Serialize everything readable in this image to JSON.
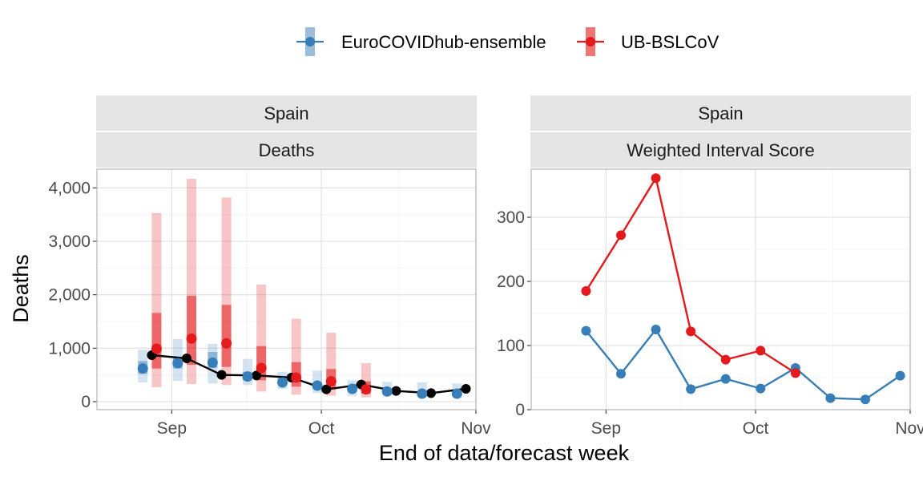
{
  "colors": {
    "ensemble": "#377EB8",
    "ub": "#E41A1C",
    "observed": "#000000"
  },
  "legend": {
    "items": [
      {
        "key": "ensemble",
        "label": "EuroCOVIDhub-ensemble"
      },
      {
        "key": "ub",
        "label": "UB-BSLCoV"
      }
    ]
  },
  "xlabel": "End of data/forecast week",
  "chart_data": [
    {
      "type": "line",
      "strip": {
        "location": "Spain",
        "target": "Deaths"
      },
      "ylabel": "Deaths",
      "x_axis": {
        "range": [
          "2021-08-17",
          "2021-11-01"
        ],
        "ticks": [
          {
            "date": "2021-09-01",
            "label": "Sep"
          },
          {
            "date": "2021-10-01",
            "label": "Oct"
          },
          {
            "date": "2021-11-01",
            "label": "Nov"
          }
        ]
      },
      "y_axis": {
        "range": [
          -150,
          4350
        ],
        "ticks": [
          {
            "value": 0,
            "label": "0"
          },
          {
            "value": 1000,
            "label": "1,000"
          },
          {
            "value": 2000,
            "label": "2,000"
          },
          {
            "value": 3000,
            "label": "3,000"
          },
          {
            "value": 4000,
            "label": "4,000"
          }
        ]
      },
      "observed": {
        "dates": [
          "2021-08-28",
          "2021-09-04",
          "2021-09-11",
          "2021-09-18",
          "2021-09-25",
          "2021-10-02",
          "2021-10-09",
          "2021-10-16",
          "2021-10-23",
          "2021-10-30"
        ],
        "values": [
          870,
          810,
          500,
          490,
          450,
          230,
          320,
          200,
          160,
          240
        ]
      },
      "forecasts": [
        {
          "model": "ensemble",
          "dates": [
            "2021-08-27",
            "2021-09-03",
            "2021-09-10",
            "2021-09-17",
            "2021-09-24",
            "2021-10-01",
            "2021-10-08",
            "2021-10-15",
            "2021-10-22",
            "2021-10-29"
          ],
          "median": [
            620,
            720,
            730,
            470,
            360,
            300,
            240,
            190,
            150,
            150
          ],
          "inner": [
            [
              520,
              760
            ],
            [
              620,
              840
            ],
            [
              630,
              930
            ],
            [
              400,
              560
            ],
            [
              310,
              430
            ],
            [
              250,
              360
            ],
            [
              190,
              290
            ],
            [
              160,
              240
            ],
            [
              130,
              190
            ],
            [
              120,
              190
            ]
          ],
          "outer": [
            [
              360,
              970
            ],
            [
              390,
              1170
            ],
            [
              340,
              1080
            ],
            [
              310,
              800
            ],
            [
              240,
              560
            ],
            [
              160,
              580
            ],
            [
              110,
              400
            ],
            [
              110,
              370
            ],
            [
              90,
              360
            ],
            [
              80,
              340
            ]
          ]
        },
        {
          "model": "ub",
          "dates": [
            "2021-08-28",
            "2021-09-04",
            "2021-09-11",
            "2021-09-18",
            "2021-09-25",
            "2021-10-02",
            "2021-10-09"
          ],
          "median": [
            990,
            1180,
            1090,
            630,
            450,
            380,
            230
          ],
          "inner": [
            [
              620,
              1660
            ],
            [
              690,
              1980
            ],
            [
              650,
              1810
            ],
            [
              400,
              1040
            ],
            [
              280,
              740
            ],
            [
              230,
              610
            ],
            [
              150,
              380
            ]
          ],
          "outer": [
            [
              270,
              3530
            ],
            [
              330,
              4170
            ],
            [
              310,
              3820
            ],
            [
              190,
              2190
            ],
            [
              130,
              1550
            ],
            [
              110,
              1290
            ],
            [
              80,
              720
            ]
          ]
        }
      ]
    },
    {
      "type": "line",
      "strip": {
        "location": "Spain",
        "target": "Weighted Interval Score"
      },
      "x_axis": {
        "range": [
          "2021-08-17",
          "2021-11-01"
        ],
        "ticks": [
          {
            "date": "2021-09-01",
            "label": "Sep"
          },
          {
            "date": "2021-10-01",
            "label": "Oct"
          },
          {
            "date": "2021-11-01",
            "label": "Nov"
          }
        ]
      },
      "y_axis": {
        "range": [
          0,
          375
        ],
        "ticks": [
          {
            "value": 0,
            "label": "0"
          },
          {
            "value": 100,
            "label": "100"
          },
          {
            "value": 200,
            "label": "200"
          },
          {
            "value": 300,
            "label": "300"
          }
        ]
      },
      "series": [
        {
          "name": "EuroCOVIDhub-ensemble",
          "key": "ensemble",
          "dates": [
            "2021-08-28",
            "2021-09-04",
            "2021-09-11",
            "2021-09-18",
            "2021-09-25",
            "2021-10-02",
            "2021-10-09",
            "2021-10-16",
            "2021-10-23",
            "2021-10-30"
          ],
          "values": [
            123,
            56,
            125,
            32,
            48,
            33,
            65,
            18,
            16,
            53
          ]
        },
        {
          "name": "UB-BSLCoV",
          "key": "ub",
          "dates": [
            "2021-08-28",
            "2021-09-04",
            "2021-09-11",
            "2021-09-18",
            "2021-09-25",
            "2021-10-02",
            "2021-10-09"
          ],
          "values": [
            185,
            272,
            361,
            122,
            78,
            92,
            57
          ]
        }
      ]
    }
  ]
}
